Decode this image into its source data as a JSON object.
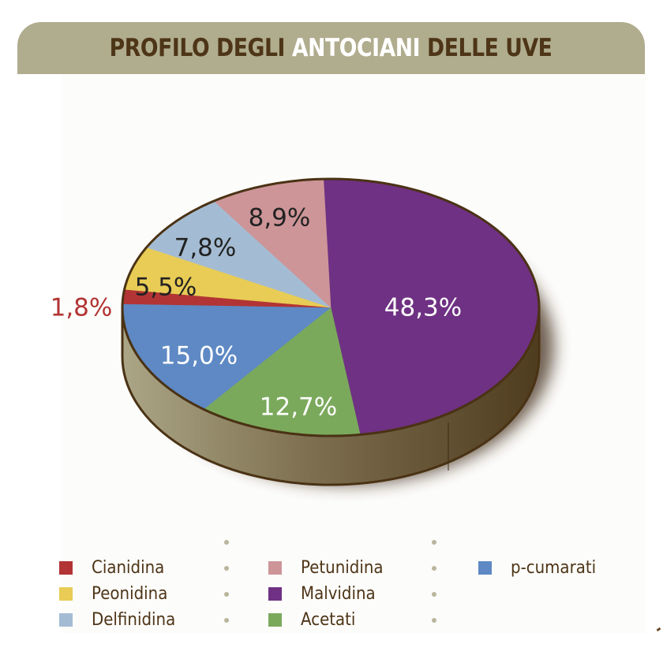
{
  "header": {
    "title_pre": "PROFILO DEGLI",
    "title_highlight": "ANTOCIANI",
    "title_post": "DELLE UVE"
  },
  "colors": {
    "header_band": "#b0ac8e",
    "header_text": "#4e3517",
    "header_highlight": "#ffffff",
    "pie_side_light": "#aba686",
    "pie_side_dark": "#4f3c1e",
    "outline": "#4a3214"
  },
  "chart_data": {
    "type": "pie",
    "title": "PROFILO DEGLI ANTOCIANI DELLE UVE",
    "style": "3d-pie",
    "unit": "%",
    "legend_position": "bottom",
    "slices": [
      {
        "name": "Malvidina",
        "value": 48.3,
        "label": "48,3%",
        "color": "#6f3183",
        "label_color": "#ffffff"
      },
      {
        "name": "Acetati",
        "value": 12.7,
        "label": "12,7%",
        "color": "#7ba95c",
        "label_color": "#ffffff"
      },
      {
        "name": "p-cumarati",
        "value": 15.0,
        "label": "15,0%",
        "color": "#5e89c4",
        "label_color": "#ffffff"
      },
      {
        "name": "Cianidina",
        "value": 1.8,
        "label": "1,8%",
        "color": "#b23434",
        "label_color": "#b23434"
      },
      {
        "name": "Peonidina",
        "value": 5.5,
        "label": "5,5%",
        "color": "#e8cc55",
        "label_color": "#222222"
      },
      {
        "name": "Delfinidina",
        "value": 7.8,
        "label": "7,8%",
        "color": "#a4bcd3",
        "label_color": "#222222"
      },
      {
        "name": "Petunidina",
        "value": 8.9,
        "label": "8,9%",
        "color": "#cd9598",
        "label_color": "#222222"
      }
    ]
  },
  "legend": {
    "items": [
      {
        "label": "Cianidina",
        "color": "#b23434"
      },
      {
        "label": "Peonidina",
        "color": "#e8cc55"
      },
      {
        "label": "Delfinidina",
        "color": "#a4bcd3"
      },
      {
        "label": "Petunidina",
        "color": "#cd9598"
      },
      {
        "label": "Malvidina",
        "color": "#6f3183"
      },
      {
        "label": "Acetati",
        "color": "#7ba95c"
      },
      {
        "label": "p-cumarati",
        "color": "#5e89c4"
      }
    ]
  }
}
